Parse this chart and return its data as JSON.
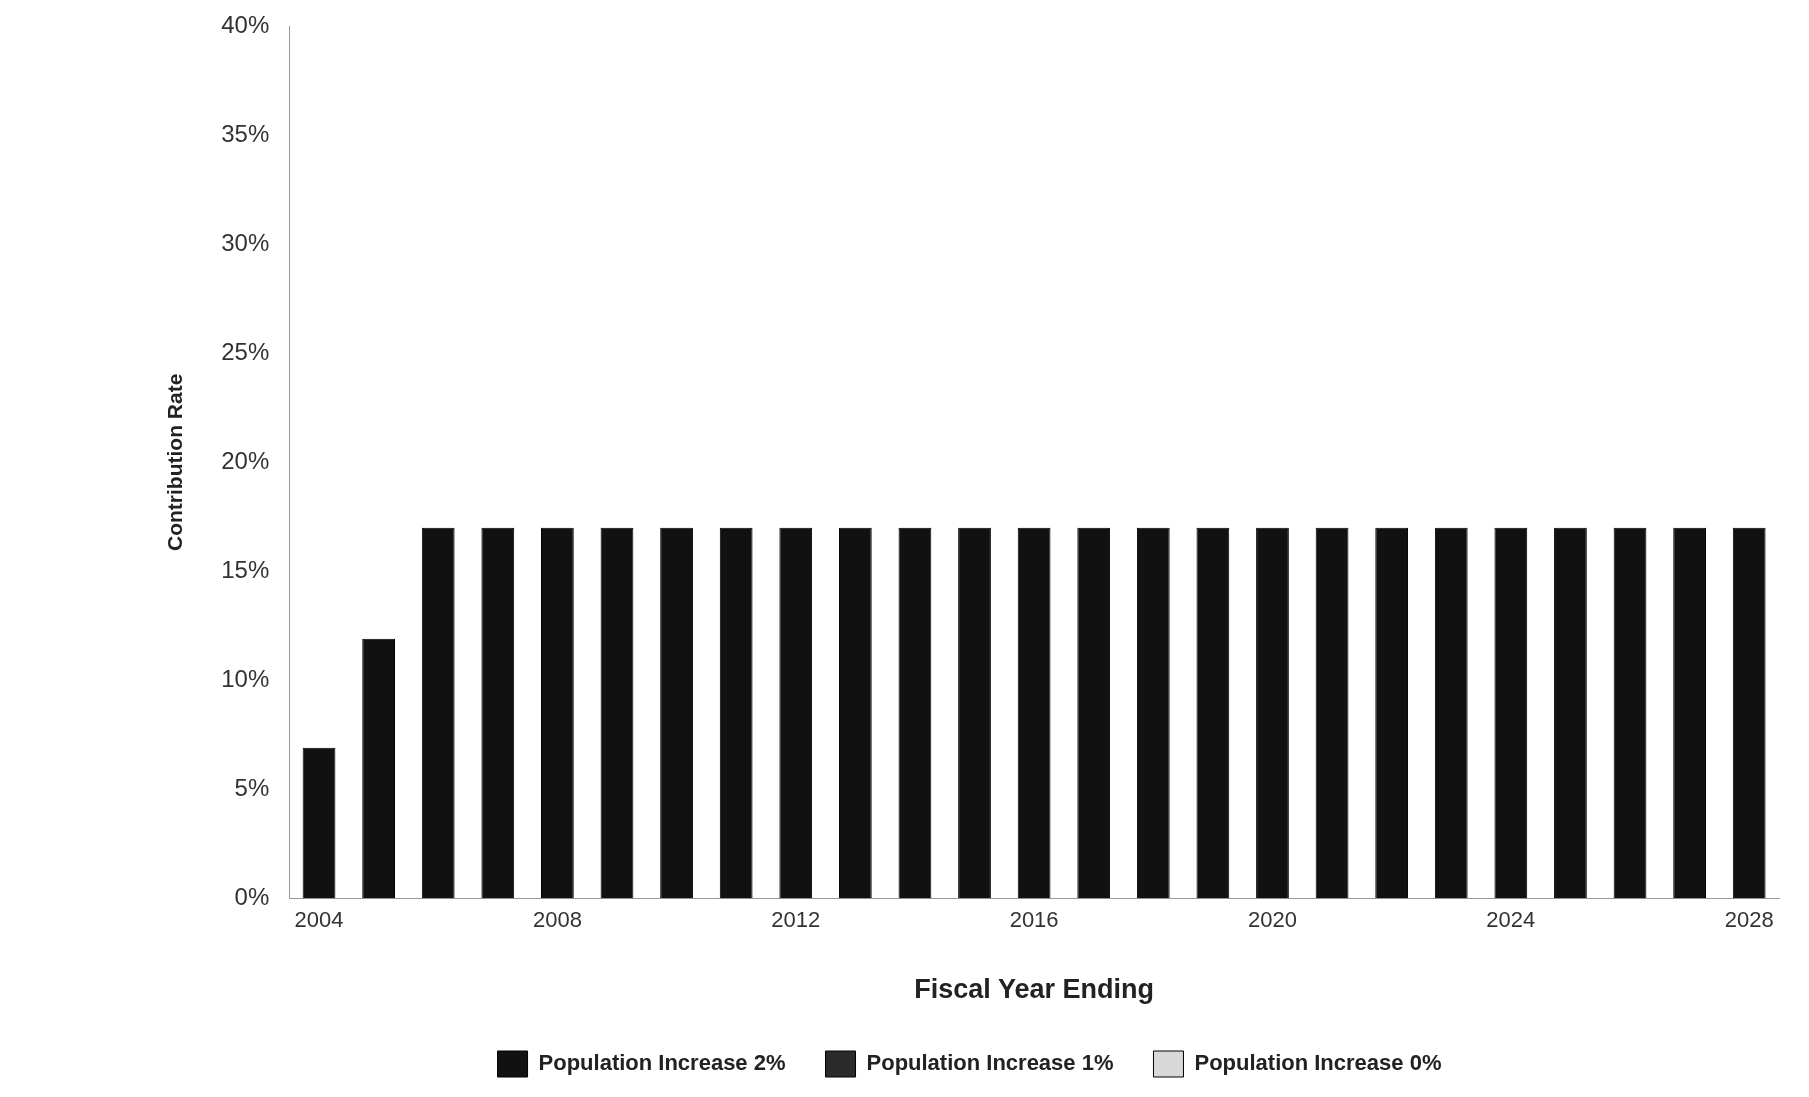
{
  "chart_data": {
    "type": "bar",
    "xlabel": "Fiscal Year Ending",
    "ylabel": "Contribution Rate",
    "categories": [
      "2004",
      null,
      null,
      null,
      "2008",
      null,
      null,
      null,
      "2012",
      null,
      null,
      null,
      "2016",
      null,
      null,
      null,
      "2020",
      null,
      null,
      null,
      "2024",
      null,
      null,
      null,
      "2028"
    ],
    "series": [
      {
        "name": "Population Increase 2%",
        "color": "#111111",
        "values": [
          6.9,
          11.9,
          17,
          17,
          17,
          17,
          17,
          17,
          17,
          17,
          17,
          17,
          17,
          17,
          17,
          17,
          17,
          17,
          17,
          17,
          17,
          17,
          17,
          17,
          17
        ]
      },
      {
        "name": "Population Increase 1%",
        "color": "#2a2a2a",
        "values": [
          null,
          null,
          null,
          null,
          null,
          null,
          null,
          null,
          null,
          null,
          null,
          null,
          null,
          null,
          null,
          null,
          null,
          null,
          null,
          null,
          null,
          null,
          null,
          null,
          null
        ]
      },
      {
        "name": "Population Increase 0%",
        "color": "#d8d8d8",
        "values": [
          null,
          null,
          null,
          null,
          null,
          null,
          null,
          null,
          null,
          null,
          null,
          null,
          null,
          null,
          null,
          null,
          null,
          null,
          null,
          null,
          null,
          null,
          null,
          null,
          null
        ]
      }
    ],
    "ylim": [
      0,
      40
    ],
    "yticks": [
      {
        "value": 0,
        "label": "0%"
      },
      {
        "value": 5,
        "label": "5%"
      },
      {
        "value": 10,
        "label": "10%"
      },
      {
        "value": 15,
        "label": "15%"
      },
      {
        "value": 20,
        "label": "20%"
      },
      {
        "value": 25,
        "label": "25%"
      },
      {
        "value": 30,
        "label": "30%"
      },
      {
        "value": 35,
        "label": "35%"
      },
      {
        "value": 40,
        "label": "40%"
      }
    ],
    "grid": false,
    "legend": "bottom"
  }
}
